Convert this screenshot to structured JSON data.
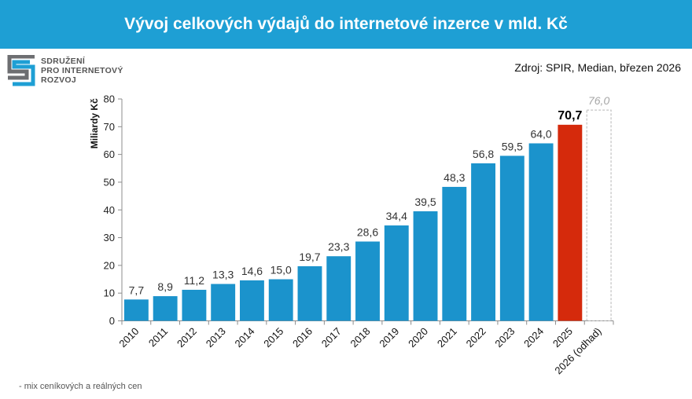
{
  "header": {
    "title": "Vývoj celkových výdajů do internetové inzerce v mld. Kč"
  },
  "logo": {
    "lines": [
      "SDRUŽENÍ",
      "PRO INTERNETOVÝ",
      "ROZVOJ"
    ]
  },
  "source": "Zdroj: SPIR, Median, březen 2026",
  "footnote": "- mix ceníkových a reálných cen",
  "colors": {
    "bar": "#1b93cc",
    "highlight": "#d52a0c",
    "estimate_border": "#b5b5b5",
    "header": "#1e9fd4"
  },
  "chart_data": {
    "type": "bar",
    "title": "Vývoj celkových výdajů do internetové inzerce v mld. Kč",
    "xlabel": "",
    "ylabel": "Miliardy Kč",
    "ylim": [
      0,
      80
    ],
    "yticks": [
      0,
      10,
      20,
      30,
      40,
      50,
      60,
      70,
      80
    ],
    "grid": false,
    "categories": [
      "2010",
      "2011",
      "2012",
      "2013",
      "2014",
      "2015",
      "2016",
      "2017",
      "2018",
      "2019",
      "2020",
      "2021",
      "2022",
      "2023",
      "2024",
      "2025",
      "2026 (odhad)"
    ],
    "values": [
      7.7,
      8.9,
      11.2,
      13.3,
      14.6,
      15.0,
      19.7,
      23.3,
      28.6,
      34.4,
      39.5,
      48.3,
      56.8,
      59.5,
      64.0,
      70.7,
      76.0
    ],
    "value_labels": [
      "7,7",
      "8,9",
      "11,2",
      "13,3",
      "14,6",
      "15,0",
      "19,7",
      "23,3",
      "28,6",
      "34,4",
      "39,5",
      "48,3",
      "56,8",
      "59,5",
      "64,0",
      "70,7",
      "76,0"
    ],
    "highlight_category": "2025",
    "estimate_category": "2026 (odhad)"
  }
}
